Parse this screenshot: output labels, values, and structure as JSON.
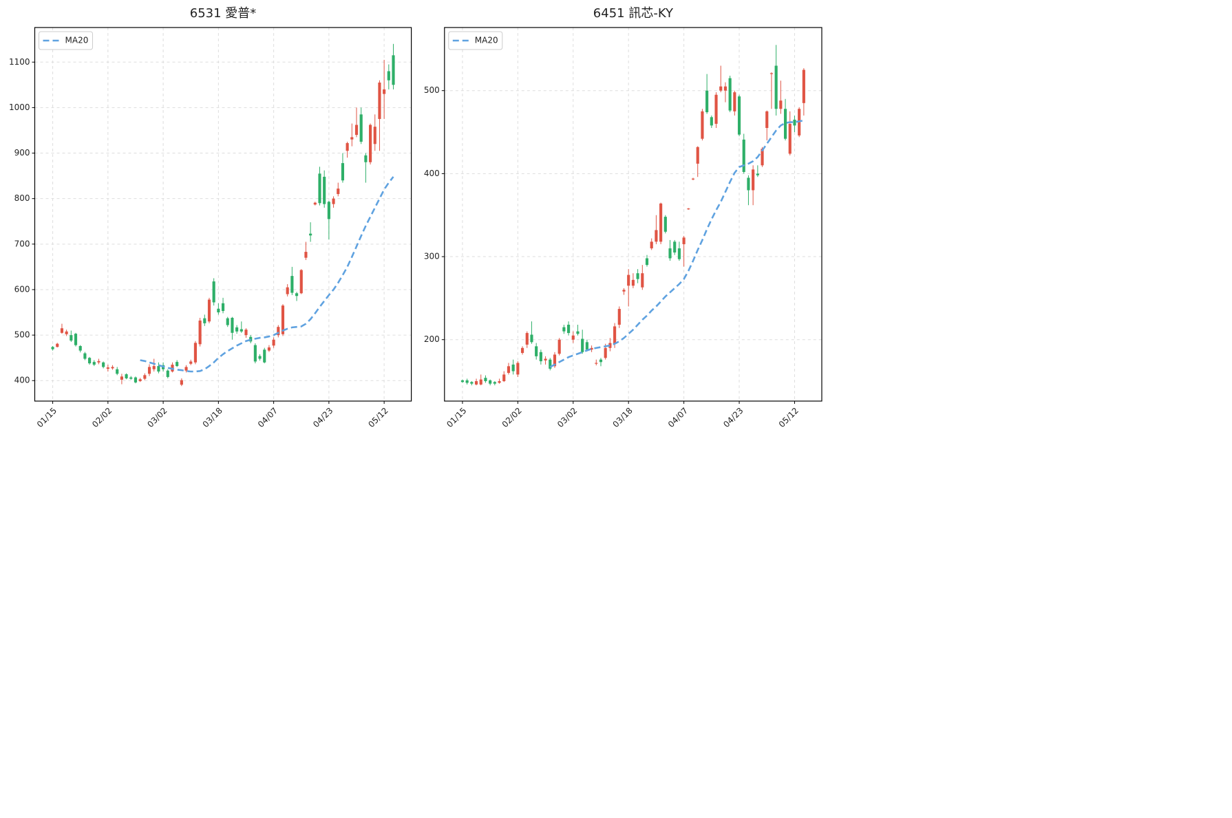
{
  "chart_data": [
    {
      "type": "candlestick",
      "title": "6531 愛普*",
      "categories": [
        "01/15",
        null,
        null,
        null,
        null,
        null,
        null,
        null,
        null,
        null,
        null,
        null,
        "02/02",
        null,
        null,
        null,
        null,
        null,
        null,
        null,
        null,
        null,
        null,
        null,
        "03/02",
        null,
        null,
        null,
        null,
        null,
        null,
        null,
        null,
        null,
        null,
        null,
        "03/18",
        null,
        null,
        null,
        null,
        null,
        null,
        null,
        null,
        null,
        null,
        null,
        "04/07",
        null,
        null,
        null,
        null,
        null,
        null,
        null,
        null,
        null,
        null,
        null,
        "04/23",
        null,
        null,
        null,
        null,
        null,
        null,
        null,
        null,
        null,
        null,
        null,
        "05/12",
        null,
        null
      ],
      "open": [
        474,
        474,
        505,
        502,
        500,
        503,
        476,
        460,
        450,
        441,
        440,
        440,
        426,
        427,
        425,
        402,
        414,
        407,
        407,
        399,
        404,
        415,
        425,
        432,
        434,
        422,
        420,
        441,
        391,
        422,
        437,
        440,
        480,
        537,
        530,
        618,
        558,
        570,
        537,
        538,
        517,
        513,
        500,
        496,
        478,
        454,
        468,
        466,
        477,
        500,
        502,
        590,
        630,
        592,
        592,
        670,
        723,
        787,
        855,
        848,
        793,
        788,
        810,
        878,
        905,
        930,
        940,
        985,
        895,
        880,
        920,
        975,
        1030,
        1080,
        1115
      ],
      "high": [
        476,
        483,
        525,
        512,
        510,
        505,
        478,
        463,
        452,
        445,
        448,
        442,
        435,
        434,
        430,
        415,
        416,
        410,
        409,
        406,
        416,
        436,
        448,
        440,
        440,
        425,
        440,
        445,
        405,
        434,
        446,
        487,
        538,
        545,
        582,
        625,
        570,
        582,
        540,
        540,
        522,
        530,
        515,
        500,
        482,
        458,
        472,
        478,
        495,
        522,
        568,
        612,
        650,
        595,
        645,
        705,
        748,
        793,
        870,
        862,
        795,
        805,
        835,
        900,
        925,
        965,
        1000,
        1000,
        900,
        965,
        985,
        1060,
        1105,
        1095,
        1140
      ],
      "low": [
        466,
        473,
        503,
        498,
        485,
        475,
        462,
        445,
        435,
        432,
        436,
        427,
        420,
        424,
        412,
        392,
        403,
        402,
        394,
        397,
        401,
        410,
        420,
        416,
        420,
        405,
        418,
        430,
        388,
        418,
        434,
        436,
        475,
        520,
        526,
        565,
        545,
        548,
        518,
        490,
        503,
        505,
        494,
        482,
        438,
        444,
        438,
        463,
        472,
        495,
        498,
        585,
        588,
        575,
        590,
        665,
        705,
        785,
        785,
        780,
        710,
        780,
        805,
        835,
        890,
        915,
        935,
        920,
        835,
        875,
        905,
        905,
        975,
        1040,
        1040
      ],
      "close": [
        469,
        481,
        515,
        508,
        488,
        478,
        466,
        448,
        438,
        435,
        443,
        430,
        429,
        430,
        415,
        409,
        405,
        404,
        396,
        403,
        412,
        430,
        432,
        420,
        425,
        408,
        435,
        432,
        401,
        430,
        442,
        483,
        532,
        526,
        578,
        572,
        550,
        553,
        522,
        505,
        508,
        508,
        512,
        486,
        442,
        448,
        440,
        473,
        490,
        518,
        565,
        605,
        593,
        586,
        643,
        683,
        719,
        791,
        790,
        788,
        755,
        800,
        822,
        840,
        922,
        935,
        962,
        925,
        880,
        962,
        958,
        1055,
        1040,
        1060,
        1050
      ],
      "up_color": "#e05444",
      "down_color": "#2eaf68",
      "series": [
        {
          "name": "MA20",
          "color": "#5fa2e0",
          "values": [
            null,
            null,
            null,
            null,
            null,
            null,
            null,
            null,
            null,
            null,
            null,
            null,
            null,
            null,
            null,
            null,
            null,
            null,
            null,
            445,
            443,
            440,
            437,
            434,
            431,
            428,
            426,
            424,
            423,
            421,
            420,
            420,
            421,
            425,
            432,
            440,
            450,
            458,
            465,
            471,
            477,
            482,
            487,
            490,
            492,
            494,
            495,
            497,
            500,
            505,
            510,
            514,
            517,
            518,
            519,
            525,
            535,
            548,
            562,
            575,
            588,
            600,
            615,
            632,
            650,
            672,
            695,
            718,
            740,
            760,
            780,
            800,
            820,
            835,
            848
          ]
        }
      ],
      "ylim": [
        355,
        1176
      ],
      "yticks": [
        400,
        500,
        600,
        700,
        800,
        900,
        1000,
        1100
      ],
      "grid": true,
      "legend": "upper left"
    },
    {
      "type": "candlestick",
      "title": "6451 訊芯-KY",
      "categories": [
        "01/15",
        null,
        null,
        null,
        null,
        null,
        null,
        null,
        null,
        null,
        null,
        null,
        "02/02",
        null,
        null,
        null,
        null,
        null,
        null,
        null,
        null,
        null,
        null,
        null,
        "03/02",
        null,
        null,
        null,
        null,
        null,
        null,
        null,
        null,
        null,
        null,
        null,
        "03/18",
        null,
        null,
        null,
        null,
        null,
        null,
        null,
        null,
        null,
        null,
        null,
        "04/07",
        null,
        null,
        null,
        null,
        null,
        null,
        null,
        null,
        null,
        null,
        null,
        "04/23",
        null,
        null,
        null,
        null,
        null,
        null,
        null,
        null,
        null,
        null,
        null,
        "05/12",
        null,
        null
      ],
      "open": [
        151,
        151,
        149,
        146,
        146,
        154,
        151,
        149,
        148,
        150,
        160,
        170,
        158,
        184,
        194,
        206,
        192,
        185,
        175,
        176,
        168,
        183,
        215,
        218,
        200,
        210,
        201,
        197,
        188,
        171,
        176,
        178,
        190,
        195,
        218,
        258,
        265,
        265,
        280,
        263,
        298,
        310,
        318,
        318,
        348,
        310,
        318,
        310,
        315,
        357,
        393,
        412,
        442,
        500,
        468,
        460,
        500,
        500,
        515,
        475,
        493,
        441,
        395,
        380,
        400,
        410,
        455,
        520,
        530,
        478,
        478,
        424,
        465,
        446,
        485
      ],
      "high": [
        152,
        153,
        150,
        153,
        158,
        157,
        152,
        150,
        153,
        162,
        172,
        176,
        174,
        192,
        210,
        222,
        196,
        188,
        180,
        178,
        185,
        202,
        218,
        222,
        210,
        218,
        212,
        200,
        193,
        176,
        178,
        195,
        202,
        220,
        240,
        262,
        285,
        280,
        285,
        290,
        302,
        322,
        350,
        365,
        350,
        320,
        320,
        318,
        325,
        358.5,
        395,
        433,
        478,
        520,
        470,
        498,
        530,
        510,
        518,
        500,
        495,
        448,
        398,
        410,
        410,
        432,
        476,
        522,
        555,
        512,
        490,
        475,
        470,
        480,
        527
      ],
      "low": [
        148,
        146,
        145,
        145,
        145,
        148,
        145,
        145,
        147,
        149,
        158,
        158,
        155,
        182,
        190,
        195,
        176,
        170,
        170,
        163,
        166,
        181,
        207,
        205,
        196,
        205,
        183,
        186,
        185,
        169,
        168,
        176,
        186,
        190,
        214,
        254,
        240,
        262,
        268,
        260,
        288,
        308,
        315,
        315,
        328,
        295,
        302,
        295,
        288,
        356.5,
        392,
        396,
        440,
        472,
        455,
        455,
        498,
        486,
        474,
        470,
        445,
        400,
        362,
        362,
        396,
        408,
        440,
        478,
        470,
        472,
        440,
        422,
        450,
        444,
        470
      ],
      "close": [
        149,
        148,
        147,
        150,
        152,
        150,
        147,
        147,
        150,
        158,
        168,
        162,
        172,
        190,
        208,
        197,
        180,
        174,
        177,
        165,
        182,
        200,
        210,
        208,
        205,
        207,
        185,
        188,
        190,
        172,
        173,
        190,
        196,
        216,
        237,
        260,
        278,
        272,
        273,
        280,
        290,
        318,
        332,
        364,
        330,
        298,
        305,
        297,
        323,
        358,
        394,
        432,
        475,
        474,
        458,
        495,
        505,
        505,
        476,
        498,
        447,
        402,
        380,
        405,
        398,
        430,
        475,
        521,
        478,
        488,
        442,
        460,
        458,
        478,
        525
      ],
      "up_color": "#e05444",
      "down_color": "#2eaf68",
      "series": [
        {
          "name": "MA20",
          "color": "#5fa2e0",
          "values": [
            null,
            null,
            null,
            null,
            null,
            null,
            null,
            null,
            null,
            null,
            null,
            null,
            null,
            null,
            null,
            null,
            null,
            null,
            null,
            167,
            170,
            173,
            176,
            179,
            181,
            183,
            185,
            187,
            189,
            190,
            191,
            192,
            193,
            195,
            198,
            202,
            207,
            212,
            218,
            224,
            229,
            235,
            240,
            246,
            252,
            257,
            262,
            267,
            273,
            283,
            295,
            308,
            320,
            333,
            345,
            356,
            366,
            378,
            390,
            401,
            408,
            410,
            412,
            415,
            420,
            428,
            436,
            444,
            452,
            458,
            461,
            462,
            462,
            463,
            464
          ]
        }
      ],
      "ylim": [
        126,
        576
      ],
      "yticks": [
        200,
        300,
        400,
        500
      ],
      "grid": true,
      "legend": "upper left"
    }
  ]
}
